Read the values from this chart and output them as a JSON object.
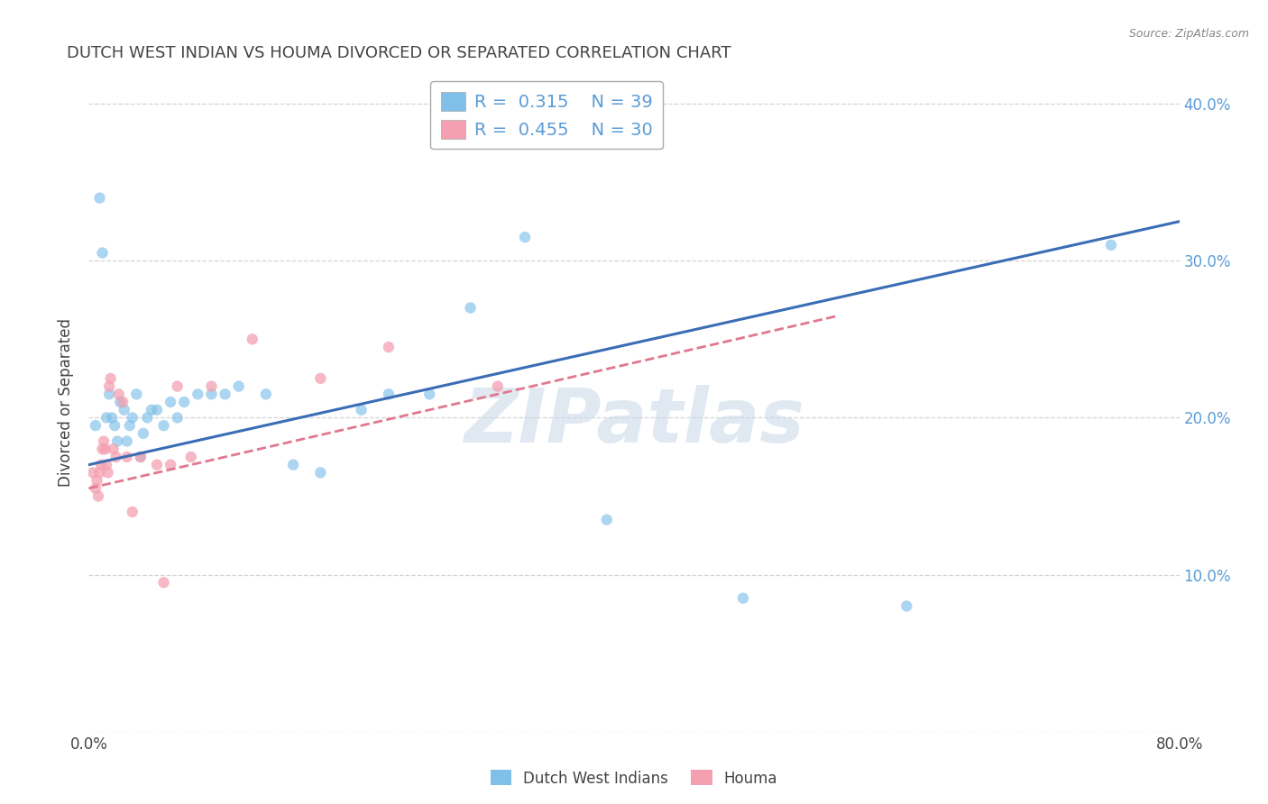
{
  "title": "DUTCH WEST INDIAN VS HOUMA DIVORCED OR SEPARATED CORRELATION CHART",
  "source": "Source: ZipAtlas.com",
  "ylabel": "Divorced or Separated",
  "xlim": [
    0,
    0.8
  ],
  "ylim": [
    0,
    0.42
  ],
  "xticks": [
    0.0,
    0.8
  ],
  "xtick_labels": [
    "0.0%",
    "80.0%"
  ],
  "yticks_right": [
    0.1,
    0.2,
    0.3,
    0.4
  ],
  "ytick_labels_right": [
    "10.0%",
    "20.0%",
    "30.0%",
    "40.0%"
  ],
  "legend_entries": [
    {
      "label": "R =  0.315    N = 39",
      "color": "#a8c4e0"
    },
    {
      "label": "R =  0.455    N = 30",
      "color": "#f4a0b0"
    }
  ],
  "blue_scatter_x": [
    0.005,
    0.008,
    0.01,
    0.013,
    0.015,
    0.017,
    0.019,
    0.021,
    0.023,
    0.026,
    0.028,
    0.03,
    0.032,
    0.035,
    0.038,
    0.04,
    0.043,
    0.046,
    0.05,
    0.055,
    0.06,
    0.065,
    0.07,
    0.08,
    0.09,
    0.1,
    0.11,
    0.13,
    0.15,
    0.17,
    0.2,
    0.22,
    0.25,
    0.28,
    0.32,
    0.38,
    0.48,
    0.6,
    0.75
  ],
  "blue_scatter_y": [
    0.195,
    0.34,
    0.305,
    0.2,
    0.215,
    0.2,
    0.195,
    0.185,
    0.21,
    0.205,
    0.185,
    0.195,
    0.2,
    0.215,
    0.175,
    0.19,
    0.2,
    0.205,
    0.205,
    0.195,
    0.21,
    0.2,
    0.21,
    0.215,
    0.215,
    0.215,
    0.22,
    0.215,
    0.17,
    0.165,
    0.205,
    0.215,
    0.215,
    0.27,
    0.315,
    0.135,
    0.085,
    0.08,
    0.31
  ],
  "pink_scatter_x": [
    0.003,
    0.005,
    0.006,
    0.007,
    0.008,
    0.009,
    0.01,
    0.011,
    0.012,
    0.013,
    0.014,
    0.015,
    0.016,
    0.018,
    0.02,
    0.022,
    0.025,
    0.028,
    0.032,
    0.038,
    0.05,
    0.055,
    0.06,
    0.065,
    0.075,
    0.09,
    0.12,
    0.17,
    0.22,
    0.3
  ],
  "pink_scatter_y": [
    0.165,
    0.155,
    0.16,
    0.15,
    0.165,
    0.17,
    0.18,
    0.185,
    0.18,
    0.17,
    0.165,
    0.22,
    0.225,
    0.18,
    0.175,
    0.215,
    0.21,
    0.175,
    0.14,
    0.175,
    0.17,
    0.095,
    0.17,
    0.22,
    0.175,
    0.22,
    0.25,
    0.225,
    0.245,
    0.22
  ],
  "blue_line_x": [
    0.0,
    0.8
  ],
  "blue_line_y": [
    0.17,
    0.325
  ],
  "pink_line_x": [
    0.0,
    0.55
  ],
  "pink_line_y": [
    0.155,
    0.265
  ],
  "blue_color": "#7fbfe8",
  "pink_color": "#f4a0b0",
  "blue_line_color": "#3a6db5",
  "pink_line_color": "#e07890",
  "watermark_text": "ZIPatlas",
  "bottom_labels": [
    "Dutch West Indians",
    "Houma"
  ],
  "background_color": "#ffffff",
  "grid_color": "#c8c8c8",
  "right_tick_color": "#5b9bd5",
  "title_color": "#444444",
  "ylabel_color": "#444444"
}
